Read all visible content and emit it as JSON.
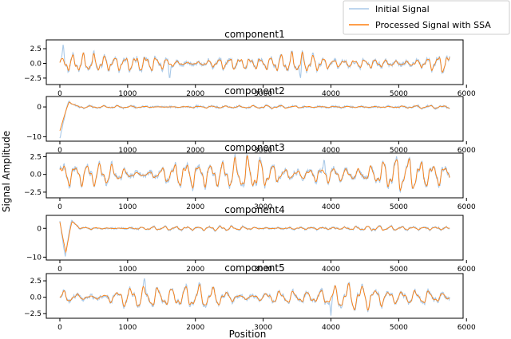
{
  "chart_data": {
    "type": "line",
    "xlabel": "Position",
    "ylabel": "Signal Amplitude",
    "xlim": [
      -200,
      5950
    ],
    "x_ticks": [
      0,
      1000,
      2000,
      3000,
      4000,
      5000,
      6000
    ],
    "n_points": 5760,
    "legend": {
      "placement": "top-right",
      "entries": [
        {
          "label": "Initial Signal",
          "color": "#a9c9e8"
        },
        {
          "label": "Processed Signal with SSA",
          "color": "#ff7f0e"
        }
      ]
    },
    "panels": [
      {
        "title": "component1",
        "ylim": [
          -3.6,
          4.0
        ],
        "y_ticks": [
          2.5,
          0.0,
          -2.5
        ],
        "y_tick_labels": [
          "2.5",
          "0.0",
          "−2.5"
        ],
        "series": [
          {
            "name": "Initial Signal",
            "amplitude": 1.2,
            "frequency_per_1000": 6.5,
            "noise": 0.35,
            "peaks": [
              [
                50,
                3.4
              ],
              [
                1620,
                -2.9
              ],
              [
                3550,
                -2.7
              ]
            ]
          },
          {
            "name": "Processed Signal with SSA",
            "amplitude": 1.1,
            "frequency_per_1000": 6.5,
            "noise": 0.0
          }
        ]
      },
      {
        "title": "component2",
        "ylim": [
          -11.5,
          3.5
        ],
        "y_ticks": [
          0,
          -10
        ],
        "y_tick_labels": [
          "0",
          "−10"
        ],
        "series": [
          {
            "name": "Initial Signal",
            "transient": [
              [
                0,
                -10.5
              ],
              [
                130,
                2.5
              ],
              [
                300,
                0.0
              ]
            ],
            "amplitude": 0.4,
            "frequency_per_1000": 5,
            "noise": 0.3
          },
          {
            "name": "Processed Signal with SSA",
            "transient": [
              [
                0,
                -8.0
              ],
              [
                140,
                2.3
              ],
              [
                300,
                0.0
              ]
            ],
            "amplitude": 0.35,
            "frequency_per_1000": 5,
            "noise": 0.0
          }
        ]
      },
      {
        "title": "component3",
        "ylim": [
          -3.3,
          3.0
        ],
        "y_ticks": [
          2.5,
          0.0,
          -2.5
        ],
        "y_tick_labels": [
          "2.5",
          "0.0",
          "−2.5"
        ],
        "series": [
          {
            "name": "Initial Signal",
            "amplitude": 1.7,
            "frequency_per_1000": 5.5,
            "noise": 0.35,
            "peaks": [
              [
                3900,
                2.3
              ]
            ]
          },
          {
            "name": "Processed Signal with SSA",
            "amplitude": 1.6,
            "frequency_per_1000": 5.5,
            "noise": 0.0
          }
        ]
      },
      {
        "title": "component4",
        "ylim": [
          -11.0,
          4.5
        ],
        "y_ticks": [
          0,
          -10
        ],
        "y_tick_labels": [
          "0",
          "−10"
        ],
        "series": [
          {
            "name": "Initial Signal",
            "transient": [
              [
                0,
                2.5
              ],
              [
                80,
                -10.5
              ],
              [
                170,
                3.5
              ],
              [
                350,
                0.0
              ]
            ],
            "amplitude": 0.6,
            "frequency_per_1000": 6,
            "noise": 0.3
          },
          {
            "name": "Processed Signal with SSA",
            "transient": [
              [
                0,
                2.2
              ],
              [
                90,
                -9.0
              ],
              [
                180,
                3.2
              ],
              [
                350,
                0.0
              ]
            ],
            "amplitude": 0.55,
            "frequency_per_1000": 6,
            "noise": 0.0
          }
        ]
      },
      {
        "title": "component5",
        "ylim": [
          -3.2,
          3.6
        ],
        "y_ticks": [
          2.5,
          0.0,
          -2.5
        ],
        "y_tick_labels": [
          "2.5",
          "0.0",
          "−2.5"
        ],
        "series": [
          {
            "name": "Initial Signal",
            "amplitude": 1.4,
            "frequency_per_1000": 5,
            "noise": 0.3,
            "peaks": [
              [
                1250,
                3.0
              ],
              [
                4000,
                -2.8
              ]
            ]
          },
          {
            "name": "Processed Signal with SSA",
            "amplitude": 1.3,
            "frequency_per_1000": 5,
            "noise": 0.0
          }
        ]
      }
    ]
  }
}
